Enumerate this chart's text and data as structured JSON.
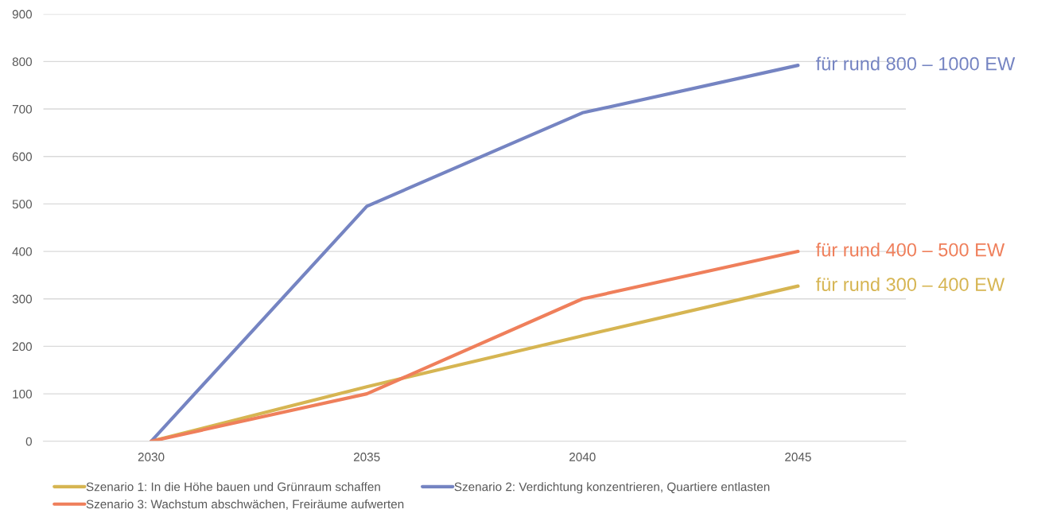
{
  "chart_data": {
    "type": "line",
    "categories": [
      "2030",
      "2035",
      "2040",
      "2045"
    ],
    "series": [
      {
        "name": "Szenario 1: In die Höhe bauen und Grünraum schaffen",
        "color": "#d6b552",
        "values": [
          0,
          115,
          222,
          327
        ]
      },
      {
        "name": "Szenario 2: Verdichtung konzentrieren, Quartiere entlasten",
        "color": "#7584c2",
        "values": [
          0,
          495,
          692,
          792
        ]
      },
      {
        "name": "Szenario 3: Wachstum abschwächen, Freiräume aufwerten",
        "color": "#ef7f5b",
        "values": [
          0,
          100,
          300,
          400
        ]
      }
    ],
    "ylim": [
      0,
      900
    ],
    "yticks": [
      0,
      100,
      200,
      300,
      400,
      500,
      600,
      700,
      800,
      900
    ],
    "grid": "y",
    "legend": "bottom",
    "marker": "none",
    "line_style": "solid",
    "annotations": [
      {
        "text": "für rund 300 – 400 EW",
        "x": "2045",
        "y": 327
      },
      {
        "text": "für rund 800 – 1000 EW",
        "x": "2045",
        "y": 792
      },
      {
        "text": "für rund 400 – 500 EW",
        "x": "2045",
        "y": 400
      }
    ]
  }
}
